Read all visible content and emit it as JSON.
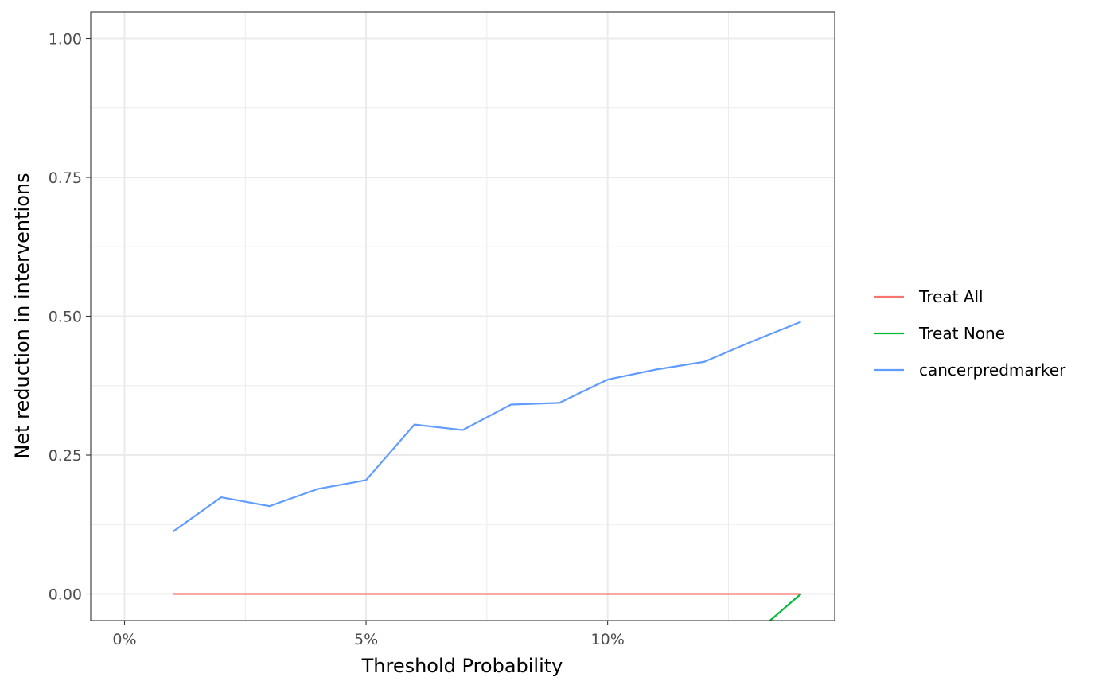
{
  "chart_data": {
    "type": "line",
    "xlabel": "Threshold Probability",
    "ylabel": "Net reduction in interventions",
    "x_ticks": [
      {
        "value": 0,
        "label": "0%"
      },
      {
        "value": 5,
        "label": "5%"
      },
      {
        "value": 10,
        "label": "10%"
      }
    ],
    "y_ticks": [
      {
        "value": 0.0,
        "label": "0.00"
      },
      {
        "value": 0.25,
        "label": "0.25"
      },
      {
        "value": 0.5,
        "label": "0.50"
      },
      {
        "value": 0.75,
        "label": "0.75"
      },
      {
        "value": 1.0,
        "label": "1.00"
      }
    ],
    "xlim": [
      -0.7,
      14.7
    ],
    "ylim": [
      -0.048,
      1.048
    ],
    "x_unit": "percent",
    "grid": true,
    "legend_position": "right",
    "series": [
      {
        "name": "Treat All",
        "color": "#F8766D",
        "x": [
          1,
          14
        ],
        "y": [
          0,
          0
        ]
      },
      {
        "name": "Treat None",
        "color": "#00BA38",
        "x": [
          13.2,
          14
        ],
        "y": [
          -0.06,
          0
        ]
      },
      {
        "name": "cancerpredmarker",
        "color": "#619CFF",
        "x": [
          1,
          2,
          3,
          4,
          5,
          6,
          7,
          8,
          9,
          10,
          11,
          12,
          13,
          14
        ],
        "y": [
          0.112,
          0.174,
          0.158,
          0.189,
          0.205,
          0.305,
          0.295,
          0.341,
          0.344,
          0.386,
          0.404,
          0.418,
          0.455,
          0.49
        ]
      }
    ]
  }
}
